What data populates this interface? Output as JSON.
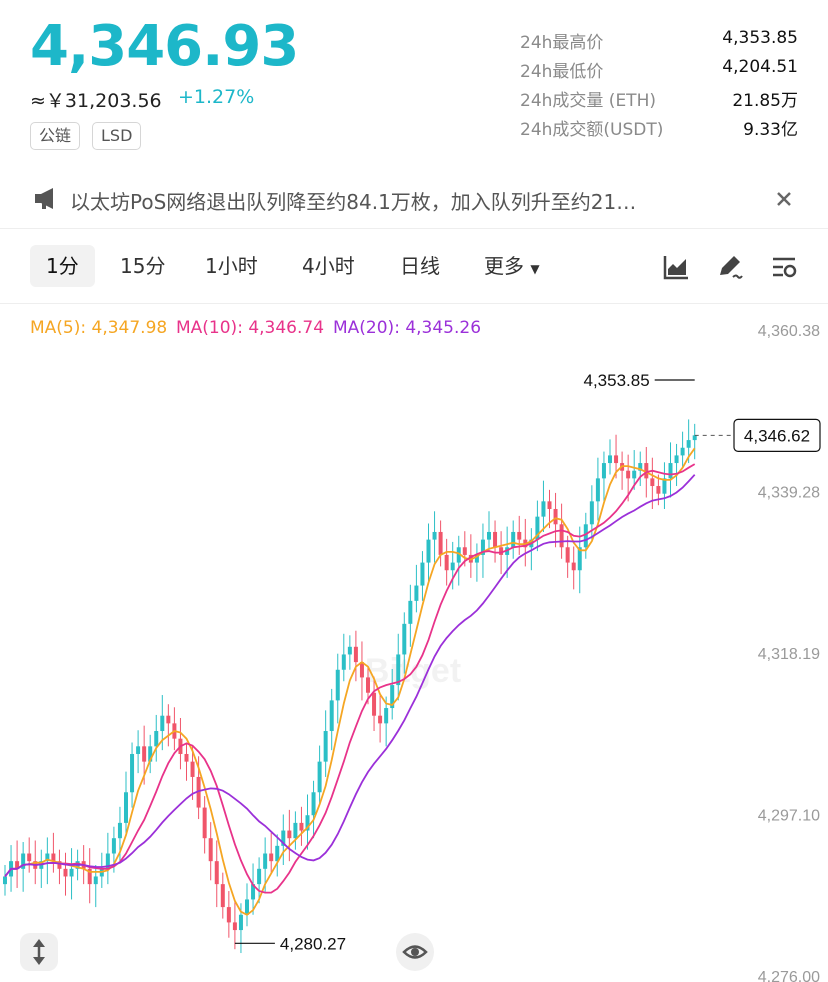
{
  "ticker": {
    "price": "4,346.93",
    "cny_price": "≈￥31,203.56",
    "change": "+1.27%",
    "tags": [
      "公链",
      "LSD"
    ]
  },
  "stats": [
    {
      "label": "24h最高价",
      "value": "4,353.85"
    },
    {
      "label": "24h最低价",
      "value": "4,204.51"
    },
    {
      "label": "24h成交量 (ETH)",
      "value": "21.85万"
    },
    {
      "label": "24h成交额(USDT)",
      "value": "9.33亿"
    }
  ],
  "notice": {
    "text": "以太坊PoS网络退出队列降至约84.1万枚，加入队列升至约21…",
    "icon": "megaphone-icon",
    "close_icon": "close-icon"
  },
  "tabs": [
    {
      "label": "1分",
      "active": true
    },
    {
      "label": "15分"
    },
    {
      "label": "1小时"
    },
    {
      "label": "4小时"
    },
    {
      "label": "日线"
    },
    {
      "label": "更多"
    }
  ],
  "toolbar_icons": [
    "chart-type-icon",
    "draw-tool-icon",
    "settings-icon"
  ],
  "ma": [
    {
      "label": "MA(5): 4,347.98",
      "color": "#f5a623"
    },
    {
      "label": "MA(10): 4,346.74",
      "color": "#e8338a"
    },
    {
      "label": "MA(20): 4,345.26",
      "color": "#9b30d9"
    }
  ],
  "chart_data": {
    "type": "candlestick",
    "y_ticks": [
      "4,360.38",
      "4,339.28",
      "4,318.19",
      "4,297.10",
      "4,276.00"
    ],
    "ylim": [
      4276.0,
      4360.38
    ],
    "high_marker": "4,353.85",
    "low_marker": "4,280.27",
    "current_price": "4,346.62",
    "up_color": "#2bbfc6",
    "down_color": "#f0556a",
    "close": [
      4289,
      4291,
      4290,
      4292,
      4291,
      4290,
      4291,
      4292,
      4291,
      4290,
      4289,
      4290,
      4291,
      4290,
      4288,
      4289,
      4290,
      4292,
      4294,
      4296,
      4300,
      4305,
      4306,
      4304,
      4306,
      4308,
      4310,
      4309,
      4307,
      4305,
      4304,
      4302,
      4298,
      4294,
      4291,
      4288,
      4285,
      4283,
      4282,
      4284,
      4286,
      4288,
      4290,
      4292,
      4291,
      4293,
      4295,
      4294,
      4296,
      4295,
      4297,
      4300,
      4304,
      4308,
      4312,
      4316,
      4318,
      4319,
      4317,
      4315,
      4313,
      4310,
      4309,
      4311,
      4314,
      4318,
      4322,
      4325,
      4327,
      4330,
      4333,
      4334,
      4331,
      4329,
      4330,
      4332,
      4331,
      4330,
      4331,
      4333,
      4334,
      4332,
      4331,
      4332,
      4334,
      4333,
      4332,
      4333,
      4336,
      4338,
      4337,
      4335,
      4332,
      4330,
      4329,
      4332,
      4335,
      4338,
      4341,
      4343,
      4344,
      4343,
      4342,
      4341,
      4342,
      4343,
      4341,
      4340,
      4339,
      4341,
      4343,
      4344,
      4345,
      4346,
      4346.62
    ]
  },
  "watermark": "Bitget"
}
